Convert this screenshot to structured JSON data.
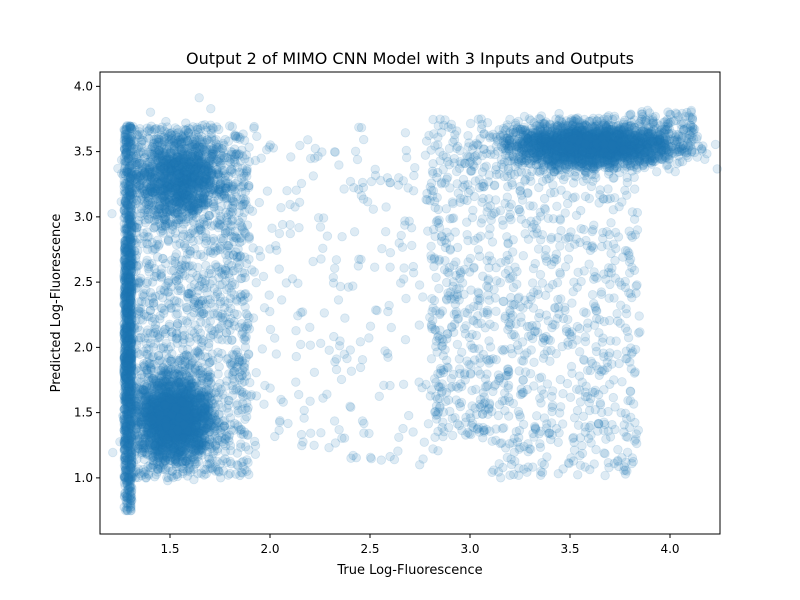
{
  "chart_data": {
    "type": "scatter",
    "title": "Output 2 of MIMO CNN Model with 3 Inputs and Outputs",
    "xlabel": "True Log-Fluorescence",
    "ylabel": "Predicted Log-Fluorescence",
    "xlim": [
      1.15,
      4.25
    ],
    "ylim": [
      0.57,
      4.11
    ],
    "x_ticks": [
      1.5,
      2.0,
      2.5,
      3.0,
      3.5,
      4.0
    ],
    "x_tick_labels": [
      "1.5",
      "2.0",
      "2.5",
      "3.0",
      "3.5",
      "4.0"
    ],
    "y_ticks": [
      1.0,
      1.5,
      2.0,
      2.5,
      3.0,
      3.5,
      4.0
    ],
    "y_tick_labels": [
      "1.0",
      "1.5",
      "2.0",
      "2.5",
      "3.0",
      "3.5",
      "4.0"
    ],
    "grid": false,
    "point_color": "#1f77b4",
    "point_alpha": 0.15,
    "clusters": [
      {
        "x_range": [
          1.27,
          1.31
        ],
        "y_range": [
          0.75,
          3.7
        ],
        "y_center": 2.0,
        "count": 1400
      },
      {
        "x_center": 1.52,
        "x_spread": 0.09,
        "y_center": 1.45,
        "y_spread": 0.15,
        "count": 2600
      },
      {
        "x_center": 1.55,
        "x_spread": 0.11,
        "y_center": 3.3,
        "y_spread": 0.16,
        "count": 1300
      },
      {
        "x_range": [
          1.3,
          1.9
        ],
        "y_range": [
          1.0,
          3.7
        ],
        "count": 1500
      },
      {
        "x_range": [
          1.9,
          2.85
        ],
        "y_range": [
          1.1,
          3.7
        ],
        "count": 260
      },
      {
        "x_range": [
          2.8,
          3.1
        ],
        "y_range": [
          1.3,
          3.75
        ],
        "count": 400
      },
      {
        "x_center": 3.6,
        "x_spread": 0.2,
        "y_center": 3.55,
        "y_spread": 0.08,
        "count": 2800
      },
      {
        "x_range": [
          3.1,
          3.85
        ],
        "y_range": [
          1.0,
          3.4
        ],
        "count": 700
      },
      {
        "x_range": [
          3.85,
          4.12
        ],
        "y_range": [
          3.45,
          3.82
        ],
        "count": 120
      }
    ]
  }
}
